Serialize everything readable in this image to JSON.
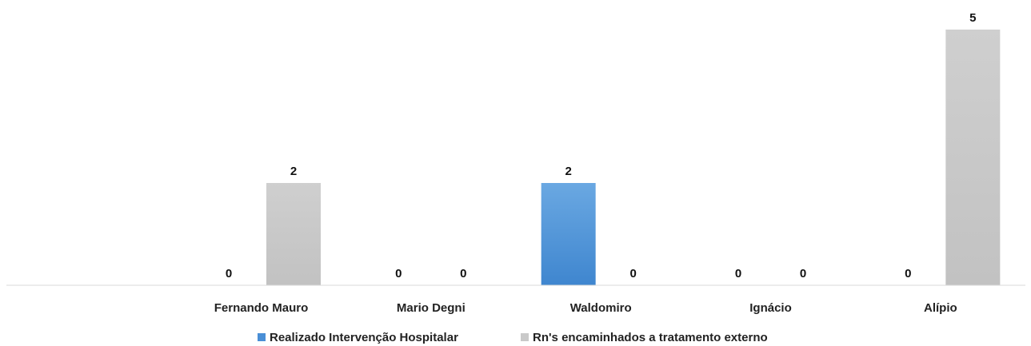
{
  "chart_data": {
    "type": "bar",
    "title": "",
    "xlabel": "",
    "ylabel": "",
    "categories": [
      "",
      "Fernando Mauro",
      "Mario Degni",
      "Waldomiro",
      "Ignácio",
      "Alípio"
    ],
    "series": [
      {
        "name": "Realizado Intervenção Hospitalar",
        "values": [
          null,
          0,
          0,
          2,
          0,
          0
        ],
        "color": "#4a8fd6"
      },
      {
        "name": "Rn's encaminhados a tratamento externo",
        "values": [
          null,
          2,
          0,
          0,
          0,
          5
        ],
        "color": "#c9c9c9"
      }
    ],
    "ylim": [
      0,
      5
    ],
    "grid": false,
    "data_labels": true,
    "legend_position": "bottom"
  }
}
